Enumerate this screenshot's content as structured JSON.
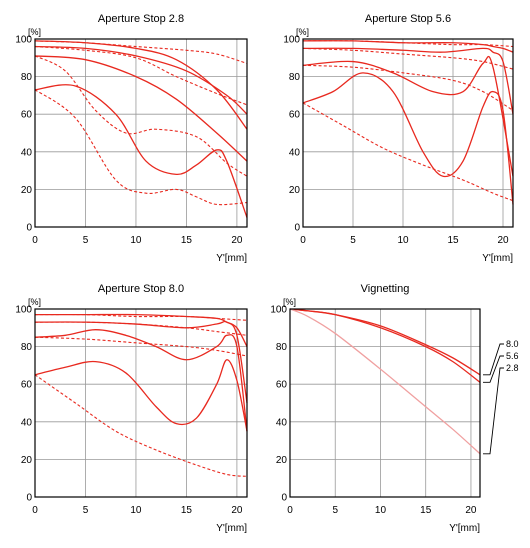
{
  "chart_data": [
    {
      "type": "line",
      "title": "Aperture Stop 2.8",
      "xlabel": "Y'[mm]",
      "ylabel": "[%]",
      "xlim": [
        0,
        21
      ],
      "ylim": [
        0,
        100
      ],
      "xticks": [
        0,
        5,
        10,
        15,
        20
      ],
      "yticks": [
        0,
        20,
        40,
        60,
        80,
        100
      ],
      "grid": true,
      "series": [
        {
          "style": "solid",
          "x": [
            0,
            5,
            10,
            14,
            18,
            21
          ],
          "y": [
            99,
            98,
            95,
            89,
            73,
            52
          ]
        },
        {
          "style": "dashed",
          "x": [
            0,
            5,
            10,
            15,
            18,
            21
          ],
          "y": [
            99,
            98,
            96,
            94,
            92,
            87
          ]
        },
        {
          "style": "solid",
          "x": [
            0,
            5,
            10,
            15,
            19,
            21
          ],
          "y": [
            96,
            95,
            91,
            83,
            70,
            60
          ]
        },
        {
          "style": "dashed",
          "x": [
            0,
            5,
            10,
            14,
            18,
            21
          ],
          "y": [
            96,
            94,
            90,
            80,
            71,
            65
          ]
        },
        {
          "style": "solid",
          "x": [
            0,
            5,
            10,
            14,
            18,
            21
          ],
          "y": [
            91,
            89,
            80,
            68,
            50,
            35
          ]
        },
        {
          "style": "dashed",
          "x": [
            0,
            3,
            6,
            9,
            12,
            16,
            19,
            21
          ],
          "y": [
            91,
            83,
            62,
            50,
            52,
            48,
            34,
            27
          ]
        },
        {
          "style": "solid",
          "x": [
            0,
            4,
            8,
            11,
            14,
            16,
            18,
            19,
            21
          ],
          "y": [
            73,
            75,
            60,
            35,
            28,
            33,
            41,
            35,
            5
          ]
        },
        {
          "style": "dashed",
          "x": [
            0,
            4,
            8,
            11,
            14,
            16,
            18,
            21
          ],
          "y": [
            73,
            58,
            25,
            18,
            20,
            16,
            12,
            13
          ]
        }
      ]
    },
    {
      "type": "line",
      "title": "Aperture Stop 5.6",
      "xlabel": "Y'[mm]",
      "ylabel": "[%]",
      "xlim": [
        0,
        21
      ],
      "ylim": [
        0,
        100
      ],
      "xticks": [
        0,
        5,
        10,
        15,
        20
      ],
      "yticks": [
        0,
        20,
        40,
        60,
        80,
        100
      ],
      "grid": true,
      "series": [
        {
          "style": "solid",
          "x": [
            0,
            5,
            10,
            15,
            18,
            19,
            20,
            21
          ],
          "y": [
            99,
            99,
            98,
            98,
            97,
            96,
            95,
            93
          ]
        },
        {
          "style": "dashed",
          "x": [
            0,
            5,
            10,
            15,
            18,
            21
          ],
          "y": [
            99,
            99,
            98,
            97,
            97,
            96
          ]
        },
        {
          "style": "solid",
          "x": [
            0,
            5,
            10,
            14,
            18,
            19,
            20,
            21
          ],
          "y": [
            95,
            95,
            94,
            93,
            95,
            93,
            88,
            60
          ]
        },
        {
          "style": "dashed",
          "x": [
            0,
            5,
            10,
            15,
            18,
            21
          ],
          "y": [
            95,
            94,
            92,
            90,
            88,
            84
          ]
        },
        {
          "style": "solid",
          "x": [
            0,
            5,
            9,
            13,
            16,
            18,
            19,
            21
          ],
          "y": [
            86,
            88,
            82,
            72,
            72,
            87,
            85,
            27
          ]
        },
        {
          "style": "dashed",
          "x": [
            0,
            5,
            10,
            15,
            18,
            21
          ],
          "y": [
            86,
            85,
            82,
            78,
            72,
            62
          ]
        },
        {
          "style": "solid",
          "x": [
            0,
            3,
            6,
            9,
            12,
            14,
            16,
            18,
            19,
            20,
            21
          ],
          "y": [
            66,
            72,
            82,
            72,
            40,
            27,
            35,
            64,
            72,
            62,
            12
          ]
        },
        {
          "style": "dashed",
          "x": [
            0,
            4,
            8,
            12,
            16,
            19,
            21
          ],
          "y": [
            66,
            54,
            42,
            33,
            25,
            18,
            14
          ]
        }
      ]
    },
    {
      "type": "line",
      "title": "Aperture Stop 8.0",
      "xlabel": "Y'[mm]",
      "ylabel": "[%]",
      "xlim": [
        0,
        21
      ],
      "ylim": [
        0,
        100
      ],
      "xticks": [
        0,
        5,
        10,
        15,
        20
      ],
      "yticks": [
        0,
        20,
        40,
        60,
        80,
        100
      ],
      "grid": true,
      "series": [
        {
          "style": "solid",
          "x": [
            0,
            5,
            10,
            15,
            18,
            19,
            20,
            21
          ],
          "y": [
            97,
            97,
            97,
            96,
            95,
            93,
            90,
            80
          ]
        },
        {
          "style": "dashed",
          "x": [
            0,
            5,
            10,
            15,
            18,
            21
          ],
          "y": [
            97,
            97,
            96,
            96,
            95,
            94
          ]
        },
        {
          "style": "solid",
          "x": [
            0,
            5,
            10,
            15,
            18,
            19,
            20,
            21
          ],
          "y": [
            93,
            93,
            92,
            90,
            92,
            93,
            86,
            50
          ]
        },
        {
          "style": "dashed",
          "x": [
            0,
            5,
            10,
            15,
            18,
            21
          ],
          "y": [
            93,
            93,
            92,
            90,
            88,
            86
          ]
        },
        {
          "style": "solid",
          "x": [
            0,
            3,
            6,
            9,
            12,
            15,
            18,
            19,
            20,
            21
          ],
          "y": [
            85,
            86,
            89,
            86,
            80,
            73,
            80,
            86,
            80,
            35
          ]
        },
        {
          "style": "dashed",
          "x": [
            0,
            5,
            10,
            15,
            18,
            21
          ],
          "y": [
            85,
            84,
            82,
            80,
            78,
            75
          ]
        },
        {
          "style": "solid",
          "x": [
            0,
            3,
            6,
            9,
            12,
            14,
            16,
            18,
            19,
            20,
            21
          ],
          "y": [
            65,
            69,
            72,
            66,
            48,
            39,
            42,
            60,
            73,
            62,
            35
          ]
        },
        {
          "style": "dashed",
          "x": [
            0,
            4,
            8,
            12,
            16,
            19,
            21
          ],
          "y": [
            65,
            50,
            35,
            25,
            17,
            12,
            11
          ]
        }
      ]
    },
    {
      "type": "line",
      "title": "Vignetting",
      "xlabel": "Y'[mm]",
      "ylabel": "[%]",
      "xlim": [
        0,
        21
      ],
      "ylim": [
        0,
        100
      ],
      "xticks": [
        0,
        5,
        10,
        15,
        20
      ],
      "yticks": [
        0,
        20,
        40,
        60,
        80,
        100
      ],
      "grid": true,
      "legend": "right",
      "series": [
        {
          "name": "8.0",
          "color": "#e8291f",
          "x": [
            0,
            2,
            5,
            10,
            15,
            18,
            21
          ],
          "y": [
            100,
            99,
            97,
            91,
            81,
            74,
            65
          ]
        },
        {
          "name": "5.6",
          "color": "#e8291f",
          "x": [
            0,
            2,
            5,
            10,
            15,
            18,
            21
          ],
          "y": [
            100,
            99,
            97,
            90,
            80,
            72,
            61
          ]
        },
        {
          "name": "2.8",
          "color": "#f0a0a0",
          "x": [
            0,
            2,
            5,
            10,
            15,
            18,
            21
          ],
          "y": [
            100,
            96,
            87,
            68,
            48,
            36,
            23
          ]
        }
      ]
    }
  ],
  "colors": {
    "line": "#e8291f",
    "light_line": "#f0a0a0",
    "grid": "#999999",
    "frame": "#000000"
  }
}
